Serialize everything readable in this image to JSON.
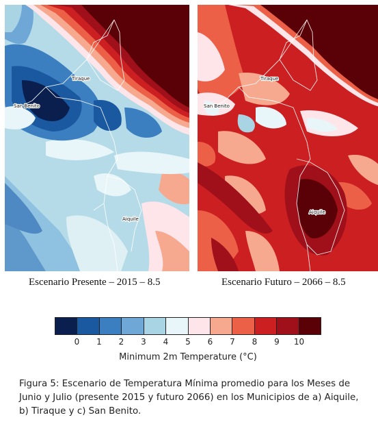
{
  "maps": [
    {
      "id": "present",
      "caption": "Escenario Presente – 2015 – 8.5",
      "places": [
        "Tiraque",
        "San Benito",
        "Aiquile"
      ]
    },
    {
      "id": "future",
      "caption": "Escenario Futuro – 2066 – 8.5",
      "places": [
        "Tiraque",
        "San Benito",
        "Aiquile"
      ]
    }
  ],
  "legend": {
    "title": "Minimum 2m Temperature (°C)",
    "ticks": [
      "0",
      "1",
      "2",
      "3",
      "4",
      "5",
      "6",
      "7",
      "8",
      "9",
      "10"
    ],
    "colors": [
      "#0a1f4e",
      "#1a58a0",
      "#3b7fc0",
      "#6fa8d6",
      "#a9d4e4",
      "#e9f6f9",
      "#fde5ea",
      "#f6a98f",
      "#ec6048",
      "#cc1f21",
      "#a0101a",
      "#5a0007"
    ]
  },
  "figure_caption": {
    "line1": "Figura 5: Escenario de Temperatura Mínima promedio para los Meses de",
    "line2": "Junio y Julio (presente 2015 y futuro 2066) en los Municipios de a) Aiquile,",
    "line3": "b) Tiraque y c) San Benito."
  }
}
